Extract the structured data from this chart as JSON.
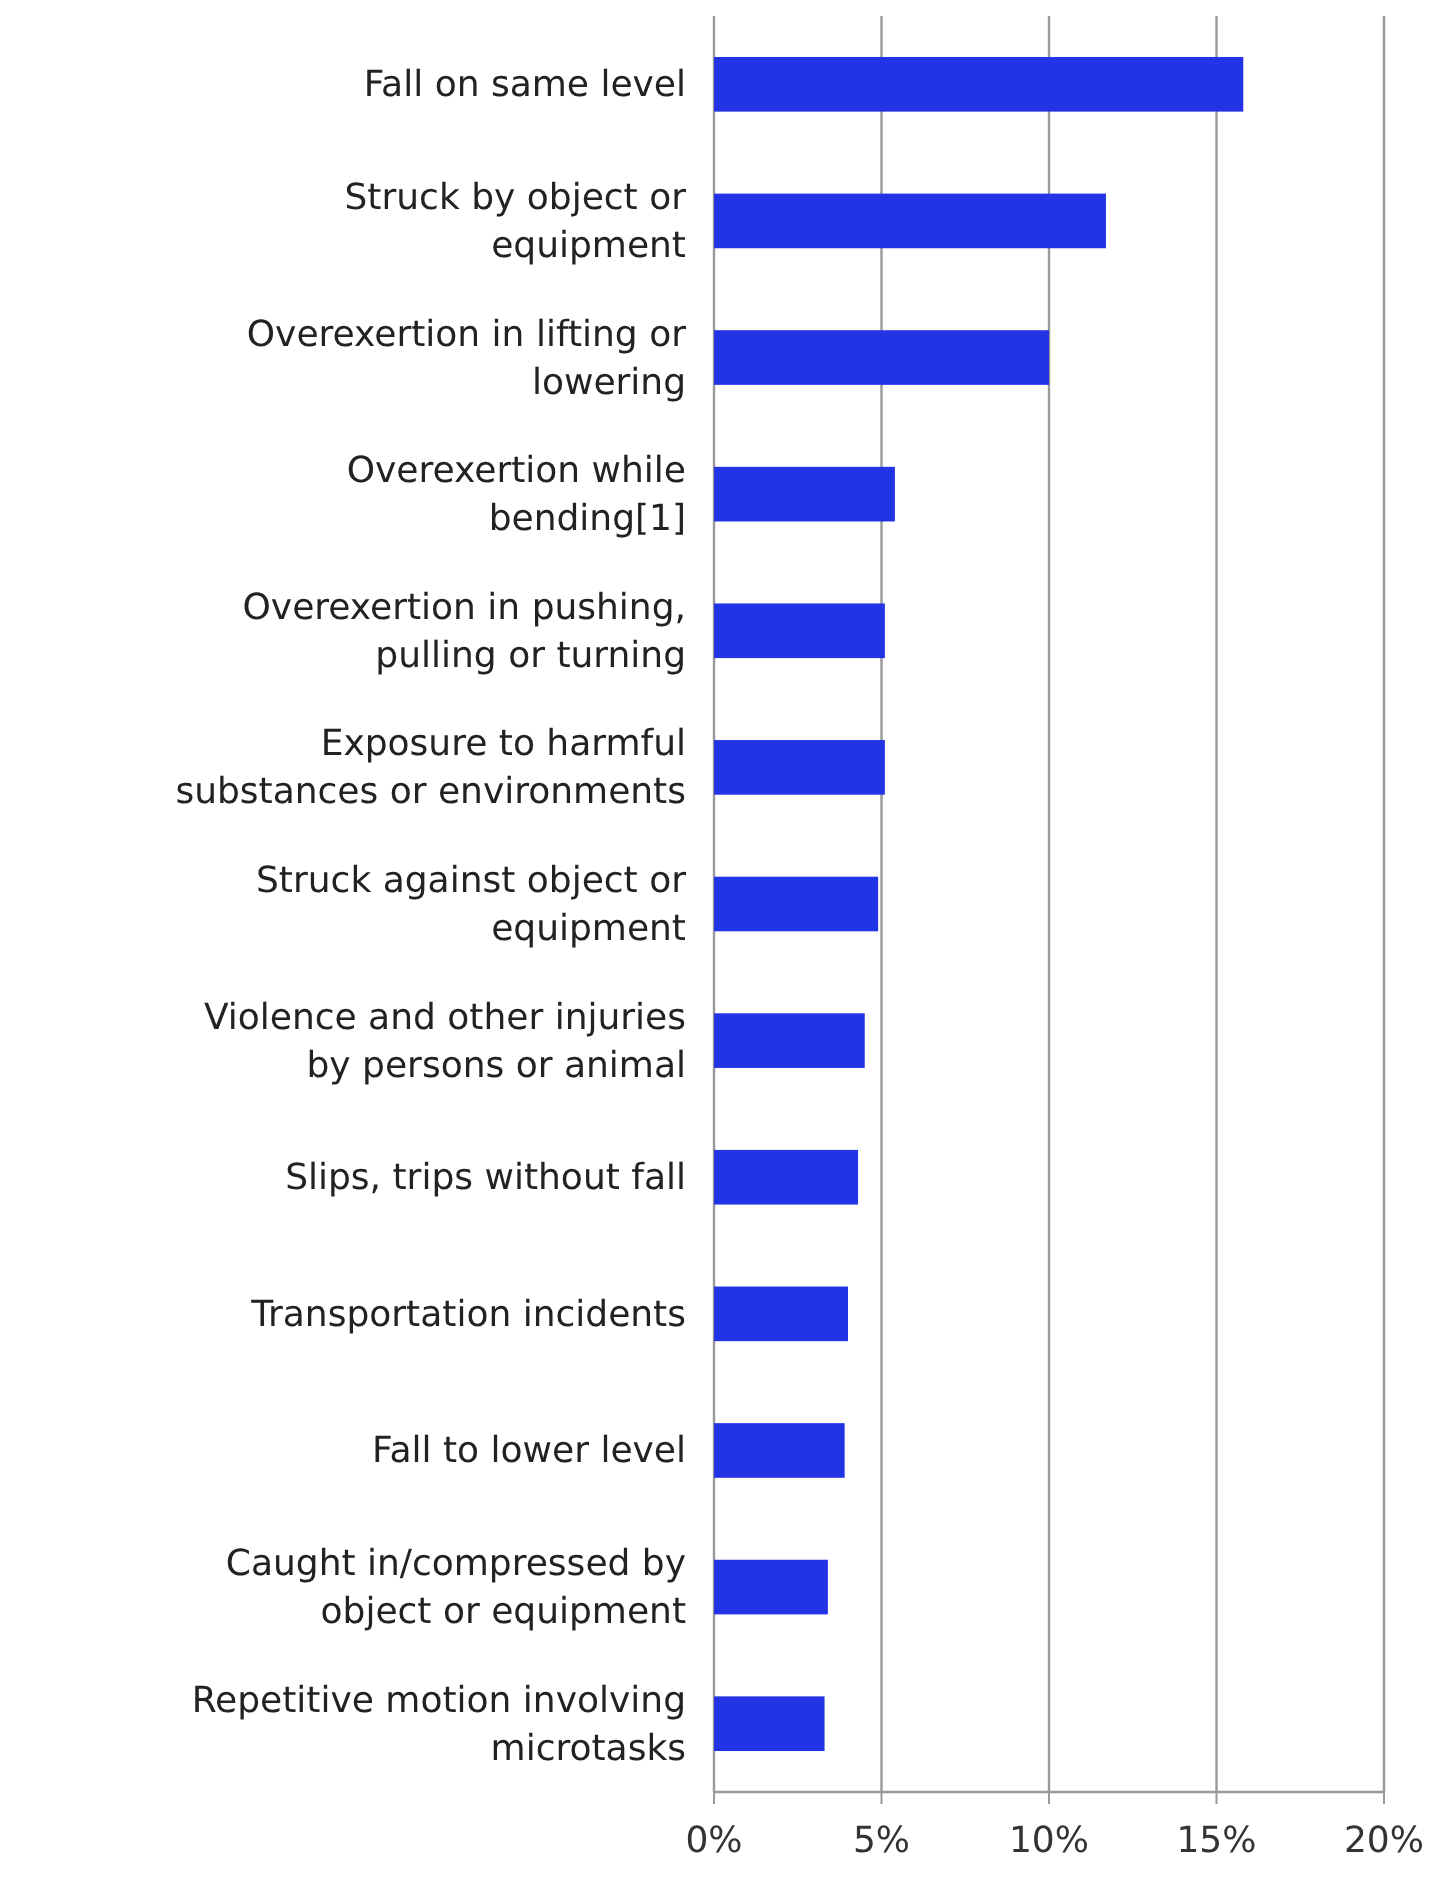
{
  "chart_data": {
    "type": "bar",
    "orientation": "horizontal",
    "categories": [
      "Fall on same level",
      "Struck by object or equipment",
      "Overexertion in lifting or lowering",
      "Overexertion while bending[1]",
      "Overexertion in pushing, pulling or turning",
      "Exposure to harmful substances or environments",
      "Struck against object or equipment",
      "Violence and other injuries by persons or animal",
      "Slips, trips without fall",
      "Transportation incidents",
      "Fall to lower level",
      "Caught in/compressed by object or equipment",
      "Repetitive motion involving microtasks"
    ],
    "values": [
      15.8,
      11.7,
      10.0,
      5.4,
      5.1,
      5.1,
      4.9,
      4.5,
      4.3,
      4.0,
      3.9,
      3.4,
      3.3
    ],
    "color": "#2234e6",
    "xlim": [
      0,
      20
    ],
    "xticks": [
      {
        "value": 0,
        "label": "0%"
      },
      {
        "value": 5,
        "label": "5%"
      },
      {
        "value": 10,
        "label": "10%"
      },
      {
        "value": 15,
        "label": "15%"
      },
      {
        "value": 20,
        "label": "20%"
      }
    ],
    "grid": "x"
  }
}
